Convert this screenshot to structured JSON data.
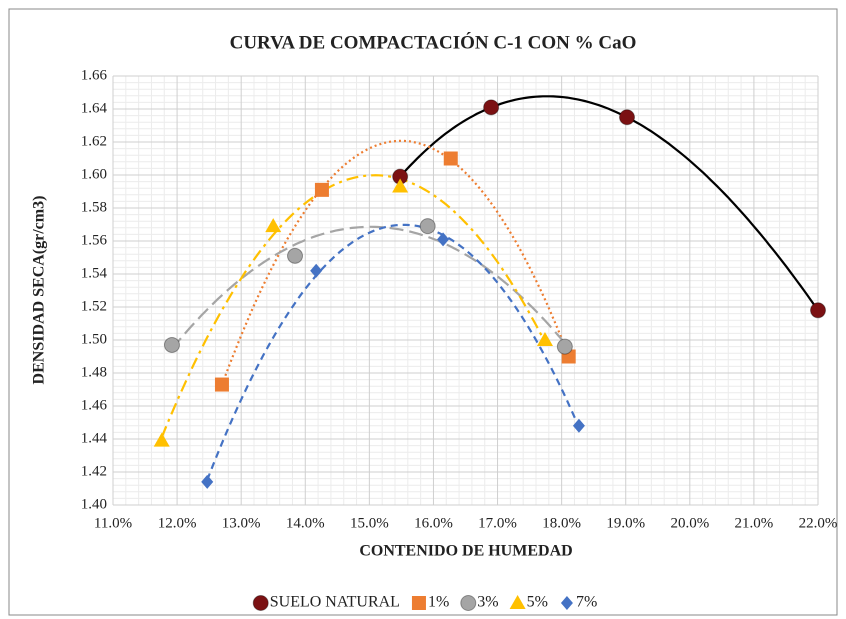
{
  "chart_data": {
    "type": "scatter",
    "title": "CURVA DE COMPACTACIÓN C-1 CON % CaO",
    "x_label": "CONTENIDO DE HUMEDAD",
    "y_label": "DENSIDAD SECA(gr/cm3)",
    "xlim": [
      11,
      22
    ],
    "ylim": [
      1.4,
      1.66
    ],
    "xticks": [
      {
        "value": 11,
        "label": "11.0%"
      },
      {
        "value": 12,
        "label": "12.0%"
      },
      {
        "value": 13,
        "label": "13.0%"
      },
      {
        "value": 14,
        "label": "14.0%"
      },
      {
        "value": 15,
        "label": "15.0%"
      },
      {
        "value": 16,
        "label": "16.0%"
      },
      {
        "value": 17,
        "label": "17.0%"
      },
      {
        "value": 18,
        "label": "18.0%"
      },
      {
        "value": 19,
        "label": "19.0%"
      },
      {
        "value": 20,
        "label": "20.0%"
      },
      {
        "value": 21,
        "label": "21.0%"
      },
      {
        "value": 22,
        "label": "22.0%"
      }
    ],
    "yticks": [
      {
        "value": 1.4,
        "label": "1.40"
      },
      1.42,
      1.44,
      1.46,
      1.48,
      {
        "value": 1.5,
        "label": "1.50"
      },
      1.52,
      1.54,
      1.56,
      1.58,
      {
        "value": 1.6,
        "label": "1.60"
      },
      1.62,
      1.64,
      1.66
    ],
    "grid": true,
    "minor_grid": 5,
    "legend": "bottom",
    "series": [
      {
        "name": "SUELO NATURAL",
        "color": "#7b1113",
        "marker": "circle",
        "x": [
          15.48,
          16.9,
          19.02,
          22.0
        ],
        "values": [
          1.599,
          1.641,
          1.635,
          1.518
        ],
        "trendline": {
          "order": 3,
          "color": "#000000",
          "dash": "solid"
        }
      },
      {
        "name": "1%",
        "color": "#ed7d31",
        "marker": "square",
        "x": [
          12.7,
          14.26,
          16.27,
          18.11
        ],
        "values": [
          1.473,
          1.591,
          1.61,
          1.49
        ],
        "trendline": {
          "order": 2,
          "color": "#ed7d31",
          "dash": "dotted"
        }
      },
      {
        "name": "3%",
        "color": "#a5a5a5",
        "marker": "circle",
        "x": [
          11.92,
          13.84,
          15.91,
          18.05
        ],
        "values": [
          1.497,
          1.551,
          1.569,
          1.496
        ],
        "trendline": {
          "order": 2,
          "color": "#a5a5a5",
          "dash": "longdash"
        }
      },
      {
        "name": "5%",
        "color": "#ffc000",
        "marker": "triangle",
        "x": [
          11.76,
          13.5,
          15.48,
          17.74
        ],
        "values": [
          1.439,
          1.569,
          1.593,
          1.5
        ],
        "trendline": {
          "order": 2,
          "color": "#ffc000",
          "dash": "dashdot"
        }
      },
      {
        "name": "7%",
        "color": "#4472c4",
        "marker": "diamond",
        "x": [
          12.47,
          14.17,
          16.15,
          18.27
        ],
        "values": [
          1.414,
          1.542,
          1.561,
          1.448
        ],
        "trendline": {
          "order": 2,
          "color": "#4472c4",
          "dash": "dashed"
        }
      }
    ]
  }
}
